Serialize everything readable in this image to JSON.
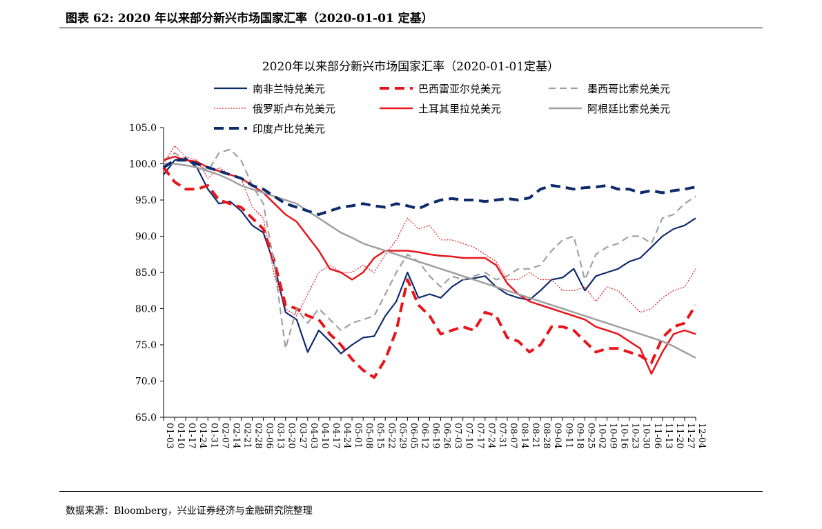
{
  "figure": {
    "header": "图表 62:  2020 年以来部分新兴市场国家汇率（2020-01-01 定基）",
    "source": "数据来源：Bloomberg，兴业证券经济与金融研究院整理"
  },
  "chart_data": {
    "type": "line",
    "title": "2020年以来部分新兴市场国家汇率（2020-01-01定基）",
    "xlabel": "",
    "ylabel": "",
    "ylim": [
      65,
      105
    ],
    "yticks": [
      "65.0",
      "70.0",
      "75.0",
      "80.0",
      "85.0",
      "90.0",
      "95.0",
      "100.0",
      "105.0"
    ],
    "grid": false,
    "legend_position": "top",
    "x": [
      "01-03",
      "01-10",
      "01-17",
      "01-24",
      "01-31",
      "02-07",
      "02-14",
      "02-21",
      "02-28",
      "03-06",
      "03-13",
      "03-20",
      "03-27",
      "04-03",
      "04-10",
      "04-17",
      "04-24",
      "05-01",
      "05-08",
      "05-15",
      "05-22",
      "05-29",
      "06-05",
      "06-12",
      "06-19",
      "06-26",
      "07-03",
      "07-10",
      "07-17",
      "07-24",
      "07-31",
      "08-07",
      "08-14",
      "08-21",
      "08-28",
      "09-04",
      "09-11",
      "09-18",
      "09-25",
      "10-02",
      "10-09",
      "10-16",
      "10-23",
      "10-30",
      "11-06",
      "11-13",
      "11-20",
      "11-27",
      "12-04"
    ],
    "series": [
      {
        "name": "南非兰特兑美元",
        "color": "#0d2a6b",
        "dash": "solid",
        "width": 2.2,
        "values": [
          98.5,
          100.5,
          100.8,
          99.5,
          96.5,
          94.5,
          94.8,
          93.5,
          91.5,
          90.5,
          86.0,
          79.5,
          78.5,
          74.0,
          77.0,
          75.5,
          73.8,
          75.0,
          76.0,
          76.2,
          79.0,
          81.0,
          85.0,
          81.5,
          82.0,
          81.5,
          83.0,
          84.0,
          84.2,
          84.5,
          83.0,
          82.0,
          81.5,
          81.2,
          82.5,
          84.0,
          84.3,
          85.5,
          82.5,
          84.5,
          85.0,
          85.5,
          86.5,
          87.0,
          88.5,
          90.0,
          91.0,
          91.5,
          92.5
        ]
      },
      {
        "name": "巴西雷亚尔兑美元",
        "color": "#e8151b",
        "dash": "14,8",
        "width": 4,
        "values": [
          99.5,
          97.5,
          96.5,
          96.5,
          97.0,
          95.0,
          94.5,
          94.0,
          92.5,
          91.0,
          86.5,
          80.5,
          80.0,
          79.0,
          78.5,
          76.5,
          75.0,
          73.0,
          71.5,
          70.5,
          73.0,
          77.0,
          84.0,
          80.5,
          79.0,
          76.5,
          77.0,
          77.5,
          77.0,
          79.5,
          79.0,
          76.0,
          75.5,
          74.0,
          75.0,
          77.5,
          77.5,
          77.0,
          75.5,
          74.0,
          74.5,
          74.5,
          74.0,
          73.5,
          72.5,
          76.0,
          77.5,
          78.0,
          80.5
        ]
      },
      {
        "name": "墨西哥比索兑美元",
        "color": "#a0a0a0",
        "dash": "10,6",
        "width": 2.2,
        "values": [
          100.5,
          101.5,
          100.5,
          100.0,
          99.0,
          101.5,
          102.0,
          100.5,
          97.0,
          94.5,
          86.0,
          74.5,
          80.0,
          78.0,
          80.0,
          78.5,
          77.0,
          78.0,
          78.5,
          79.0,
          82.0,
          85.0,
          87.5,
          86.5,
          84.5,
          83.0,
          84.5,
          84.0,
          84.5,
          85.0,
          84.0,
          84.5,
          85.5,
          85.5,
          86.0,
          88.0,
          89.5,
          90.0,
          84.0,
          87.5,
          88.5,
          89.0,
          90.0,
          90.0,
          89.0,
          92.5,
          93.0,
          94.5,
          95.5
        ]
      },
      {
        "name": "俄罗斯卢布兑美元",
        "color": "#e8151b",
        "dash": "2,2",
        "width": 1.2,
        "values": [
          100.0,
          102.5,
          101.0,
          100.5,
          98.0,
          99.5,
          98.5,
          98.0,
          94.0,
          92.5,
          84.5,
          80.0,
          79.0,
          82.0,
          85.0,
          86.0,
          85.0,
          85.0,
          86.0,
          85.0,
          87.5,
          89.5,
          92.5,
          91.0,
          91.5,
          89.5,
          89.5,
          89.0,
          88.5,
          87.5,
          86.5,
          84.0,
          84.0,
          85.0,
          84.0,
          84.0,
          82.5,
          82.5,
          83.0,
          81.0,
          83.0,
          82.5,
          81.0,
          79.5,
          80.0,
          81.5,
          82.5,
          83.0,
          85.5
        ]
      },
      {
        "name": "土耳其里拉兑美元",
        "color": "#e8151b",
        "dash": "solid",
        "width": 2.5,
        "values": [
          100.5,
          101.0,
          100.5,
          100.3,
          99.5,
          99.0,
          98.5,
          98.0,
          97.0,
          96.0,
          94.5,
          93.0,
          92.0,
          90.0,
          88.0,
          85.5,
          85.0,
          84.0,
          85.0,
          87.0,
          88.0,
          88.0,
          88.0,
          87.8,
          87.5,
          87.3,
          87.2,
          87.0,
          87.0,
          87.0,
          86.0,
          83.5,
          82.0,
          81.0,
          80.5,
          80.0,
          79.5,
          79.0,
          78.5,
          77.5,
          77.0,
          76.5,
          75.5,
          74.5,
          71.0,
          74.0,
          76.5,
          77.0,
          76.5
        ]
      },
      {
        "name": "阿根廷比索兑美元",
        "color": "#a0a0a0",
        "dash": "solid",
        "width": 2.5,
        "values": [
          100.0,
          100.0,
          99.8,
          99.5,
          99.0,
          98.5,
          97.8,
          97.0,
          96.5,
          96.0,
          95.5,
          95.0,
          94.5,
          93.5,
          92.5,
          91.5,
          90.5,
          89.8,
          89.0,
          88.5,
          88.0,
          87.5,
          87.0,
          86.5,
          86.0,
          85.5,
          85.0,
          84.5,
          84.0,
          83.5,
          83.0,
          82.5,
          82.0,
          81.5,
          81.0,
          80.5,
          80.0,
          79.5,
          79.0,
          78.5,
          78.0,
          77.5,
          77.0,
          76.5,
          76.0,
          75.5,
          74.8,
          74.0,
          73.2
        ]
      },
      {
        "name": "印度卢比兑美元",
        "color": "#0d2a6b",
        "dash": "14,8",
        "width": 4,
        "values": [
          99.5,
          100.5,
          100.5,
          100.0,
          99.5,
          99.0,
          98.5,
          98.0,
          97.0,
          96.5,
          95.5,
          94.5,
          94.0,
          93.5,
          93.0,
          93.5,
          94.0,
          94.2,
          94.5,
          94.2,
          94.0,
          94.5,
          94.2,
          93.8,
          94.5,
          95.0,
          95.2,
          95.0,
          95.0,
          94.8,
          95.0,
          95.2,
          95.0,
          95.3,
          96.5,
          97.0,
          96.8,
          96.5,
          96.7,
          96.8,
          97.0,
          96.5,
          96.5,
          96.0,
          96.3,
          96.0,
          96.3,
          96.5,
          96.8
        ]
      }
    ]
  }
}
